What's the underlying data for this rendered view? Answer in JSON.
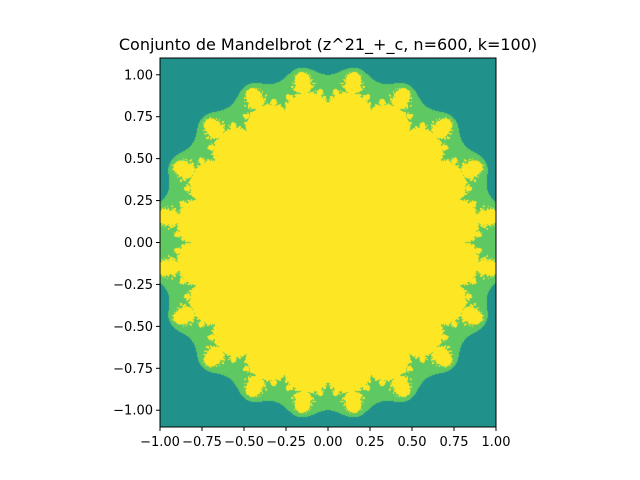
{
  "chart_data": {
    "type": "heatmap",
    "title": "Conjunto de Mandelbrot (z^21_+_c, n=600, k=100)",
    "xlabel": "",
    "ylabel": "",
    "xlim": [
      -1.0,
      1.0
    ],
    "ylim": [
      -1.1,
      1.1
    ],
    "x_ticks": [
      {
        "value": -1.0,
        "label": "−1.00"
      },
      {
        "value": -0.75,
        "label": "−0.75"
      },
      {
        "value": -0.5,
        "label": "−0.50"
      },
      {
        "value": -0.25,
        "label": "−0.25"
      },
      {
        "value": 0.0,
        "label": "0.00"
      },
      {
        "value": 0.25,
        "label": "0.25"
      },
      {
        "value": 0.5,
        "label": "0.50"
      },
      {
        "value": 0.75,
        "label": "0.75"
      },
      {
        "value": 1.0,
        "label": "1.00"
      }
    ],
    "y_ticks": [
      {
        "value": 1.0,
        "label": "1.00"
      },
      {
        "value": 0.75,
        "label": "0.75"
      },
      {
        "value": 0.5,
        "label": "0.50"
      },
      {
        "value": 0.25,
        "label": "0.25"
      },
      {
        "value": 0.0,
        "label": "0.00"
      },
      {
        "value": -0.25,
        "label": "−0.25"
      },
      {
        "value": -0.5,
        "label": "−0.50"
      },
      {
        "value": -0.75,
        "label": "−0.75"
      },
      {
        "value": -1.0,
        "label": "−1.00"
      }
    ],
    "exponent": 21,
    "resolution": 600,
    "max_iterations": 100,
    "grid": false,
    "colormap": {
      "outside": "#440154",
      "boundary_mid": "#21918c",
      "boundary_light": "#5ec962",
      "inside": "#fde725"
    }
  }
}
